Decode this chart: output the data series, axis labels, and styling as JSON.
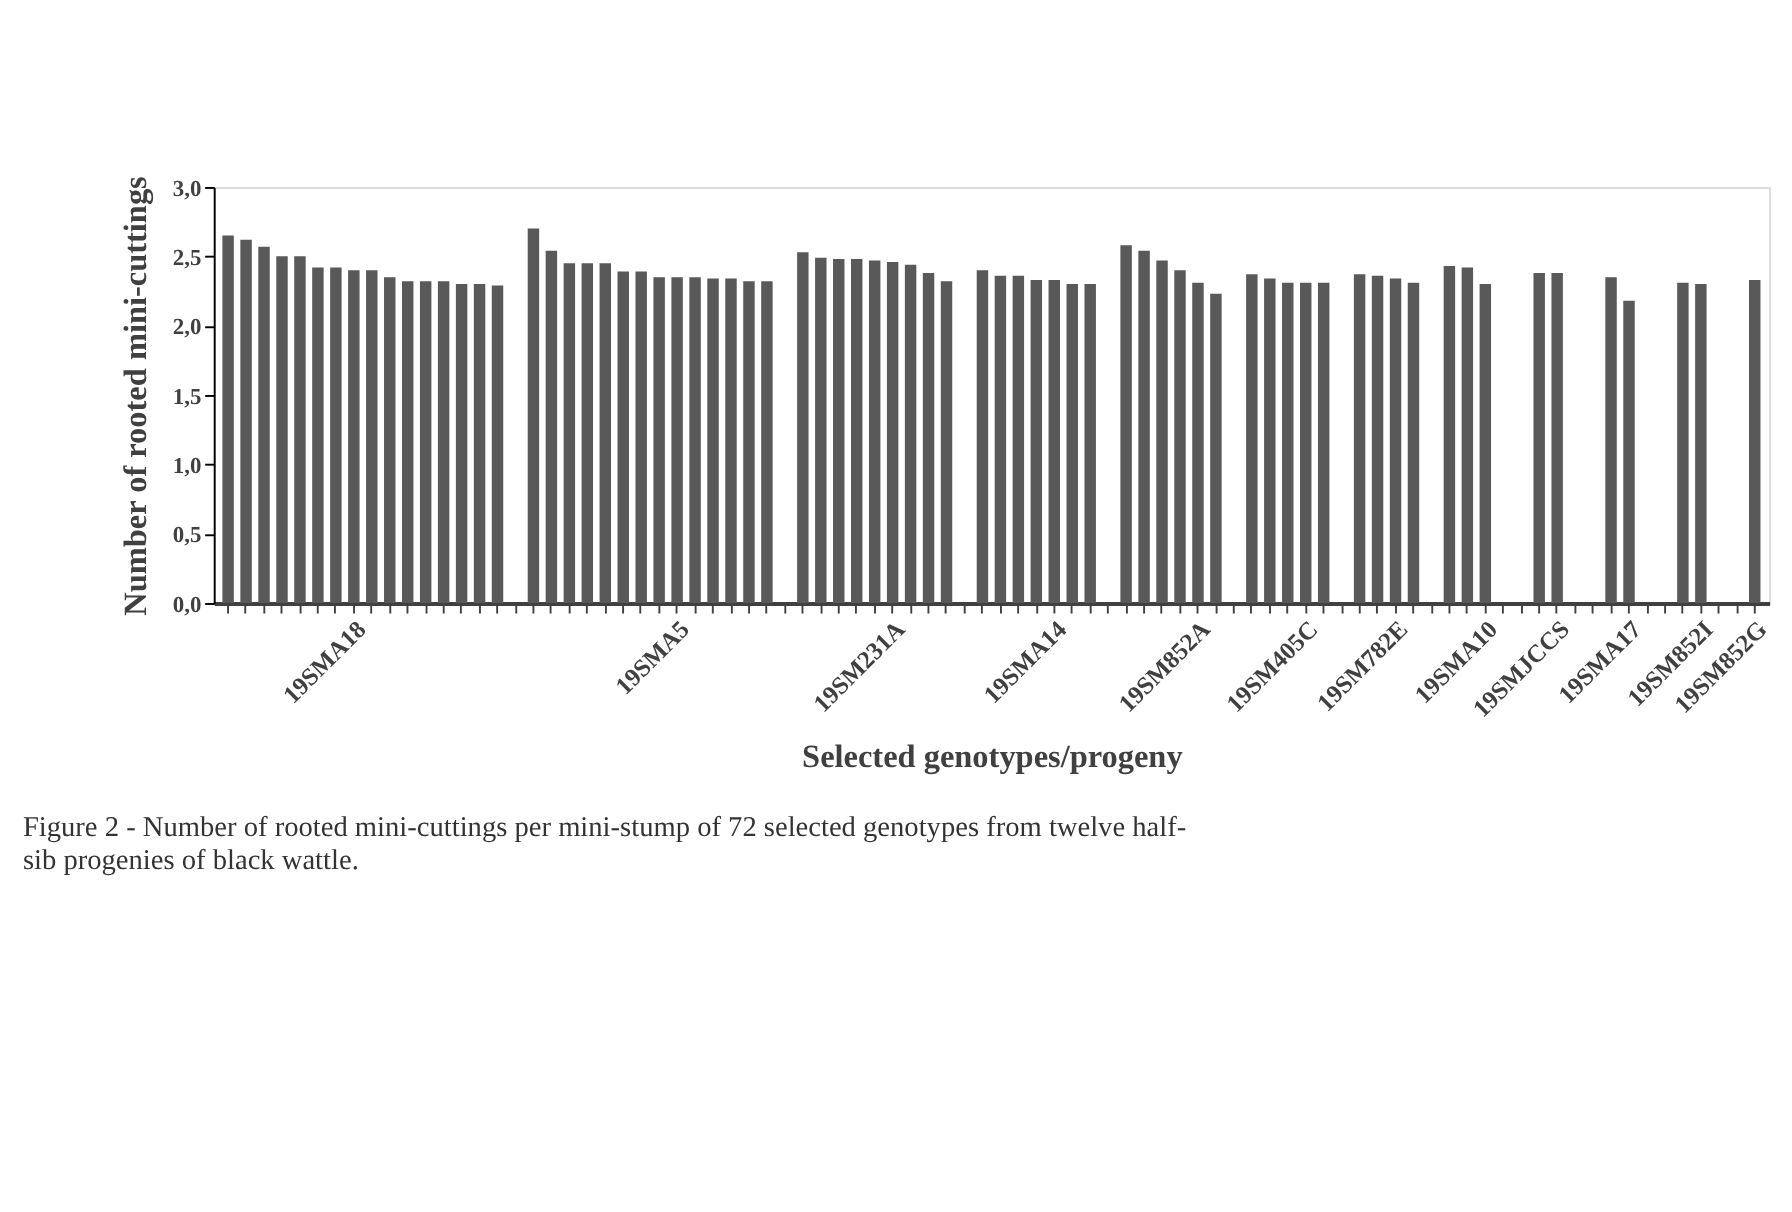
{
  "chart_data": {
    "type": "bar",
    "xlabel": "Selected  genotypes/progeny",
    "ylabel": "Number of rooted mini-cuttings",
    "categories": [
      null,
      null,
      null,
      null,
      null,
      null,
      null,
      "19SMA18",
      null,
      null,
      null,
      null,
      null,
      null,
      null,
      null,
      null,
      null,
      null,
      null,
      null,
      null,
      null,
      null,
      null,
      "19SMA5",
      null,
      null,
      null,
      null,
      null,
      null,
      null,
      null,
      null,
      null,
      null,
      "19SM231A",
      null,
      null,
      null,
      null,
      null,
      null,
      null,
      null,
      "19SMA14",
      null,
      null,
      null,
      null,
      null,
      null,
      null,
      "19SM852A",
      null,
      null,
      null,
      null,
      null,
      "19SM405C",
      null,
      null,
      null,
      null,
      "19SM782E",
      null,
      null,
      null,
      null,
      "19SMA10",
      null,
      null,
      null,
      "19SMJCCS",
      null,
      null,
      null,
      "19SMA17",
      null,
      null,
      null,
      "19SM852I",
      null,
      null,
      "19SM852G"
    ],
    "values": [
      2.65,
      2.62,
      2.57,
      2.5,
      2.5,
      2.42,
      2.42,
      2.4,
      2.4,
      2.35,
      2.32,
      2.32,
      2.32,
      2.3,
      2.3,
      2.29,
      null,
      2.7,
      2.54,
      2.45,
      2.45,
      2.45,
      2.39,
      2.39,
      2.35,
      2.35,
      2.35,
      2.34,
      2.34,
      2.32,
      2.32,
      null,
      2.53,
      2.49,
      2.48,
      2.48,
      2.47,
      2.46,
      2.44,
      2.38,
      2.32,
      null,
      2.4,
      2.36,
      2.36,
      2.33,
      2.33,
      2.3,
      2.3,
      null,
      2.58,
      2.54,
      2.47,
      2.4,
      2.31,
      2.23,
      null,
      2.37,
      2.34,
      2.31,
      2.31,
      2.31,
      null,
      2.37,
      2.36,
      2.34,
      2.31,
      null,
      2.43,
      2.42,
      2.3,
      null,
      null,
      2.38,
      2.38,
      null,
      null,
      2.35,
      2.18,
      null,
      null,
      2.31,
      2.3,
      null,
      null,
      2.33
    ],
    "color": "#595959",
    "ylim": [
      0,
      3
    ],
    "yticks": [
      {
        "value": 0,
        "label": "0,0"
      },
      {
        "value": 0.5,
        "label": "0,5"
      },
      {
        "value": 1,
        "label": "1,0"
      },
      {
        "value": 1.5,
        "label": "1,5"
      },
      {
        "value": 2,
        "label": "2,0"
      },
      {
        "value": 2.5,
        "label": "2,5"
      },
      {
        "value": 3,
        "label": "3,0"
      }
    ],
    "grid": false,
    "annotations": [
      "Figure 2 - Number of rooted mini-cuttings per mini-stump of 72 selected genotypes from twelve half-sib progenies of black wattle."
    ]
  }
}
